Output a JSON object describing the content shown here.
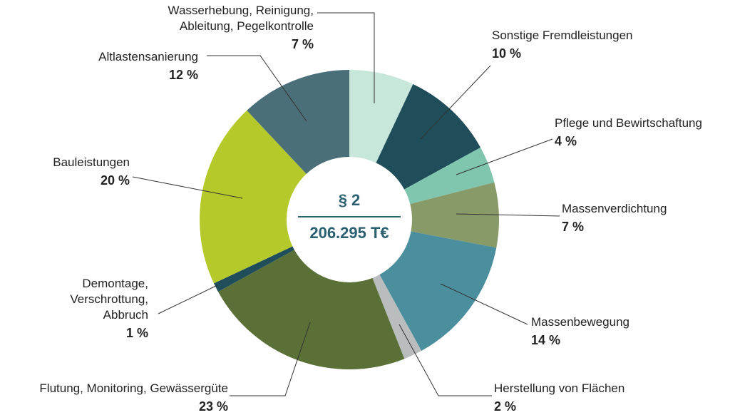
{
  "chart_data": {
    "type": "donut",
    "center_title": "§ 2",
    "center_total": "206.295 T€",
    "categories": [
      "Wasserhebung, Reinigung, Ableitung, Pegelkontrolle",
      "Sonstige Fremdleistungen",
      "Pflege und Bewirtschaftung",
      "Massenverdichtung",
      "Massenbewegung",
      "Herstellung von Flächen",
      "Flutung, Monitoring, Gewässergüte",
      "Demontage, Verschrottung, Abbruch",
      "Bauleistungen",
      "Altlastensanierung"
    ],
    "values": [
      7,
      10,
      4,
      7,
      14,
      2,
      23,
      1,
      20,
      12
    ],
    "value_labels": [
      "7 %",
      "10 %",
      "4 %",
      "7 %",
      "14 %",
      "2 %",
      "23 %",
      "1 %",
      "20 %",
      "12 %"
    ],
    "colors": [
      "#c6e7da",
      "#1f4e5a",
      "#80c5ae",
      "#889a68",
      "#4b8f9e",
      "#b9bdbd",
      "#5a7036",
      "#1f4e5a",
      "#b6c92b",
      "#4b6f79"
    ]
  }
}
